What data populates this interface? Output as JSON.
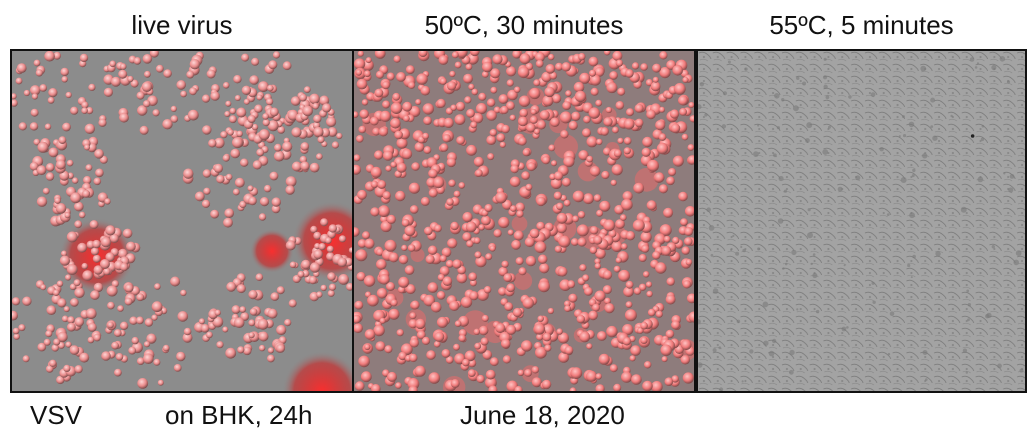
{
  "panels": [
    {
      "title": "live virus"
    },
    {
      "title": "50ºC, 30 minutes"
    },
    {
      "title": "55ºC, 5 minutes"
    }
  ],
  "captions": {
    "virus": "VSV",
    "cells": "on BHK, 24h",
    "date": "June 18, 2020"
  },
  "colors": {
    "background_gray": "#8a8a8a",
    "fluorescence_red": "#ff4040",
    "cell_gray": "#a9a9a9"
  }
}
